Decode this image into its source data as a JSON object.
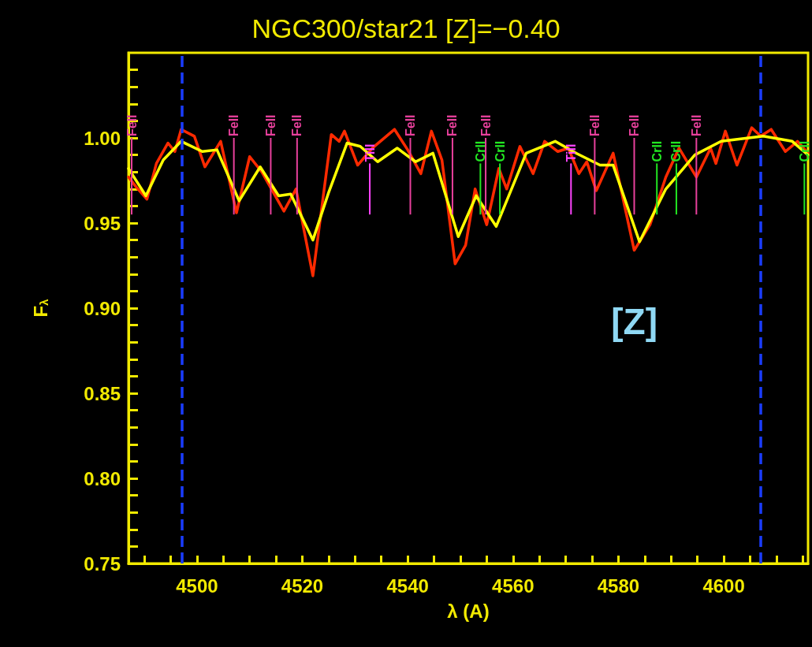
{
  "chart_data": {
    "type": "line",
    "title": "NGC300/star21 [Z]=−0.40",
    "xlabel": "λ (A)",
    "ylabel": "F$_{λ}$",
    "annotations": [
      "[Z]"
    ],
    "xlim": [
      4487,
      4616
    ],
    "ylim": [
      0.75,
      1.05
    ],
    "xticks": [
      {
        "value": 4490,
        "label": null
      },
      {
        "value": 4495,
        "label": null
      },
      4500,
      {
        "value": 4505,
        "label": null
      },
      {
        "value": 4510,
        "label": null
      },
      {
        "value": 4515,
        "label": null
      },
      4520,
      {
        "value": 4525,
        "label": null
      },
      {
        "value": 4530,
        "label": null
      },
      {
        "value": 4535,
        "label": null
      },
      4540,
      {
        "value": 4545,
        "label": null
      },
      {
        "value": 4550,
        "label": null
      },
      {
        "value": 4555,
        "label": null
      },
      4560,
      {
        "value": 4565,
        "label": null
      },
      {
        "value": 4570,
        "label": null
      },
      {
        "value": 4575,
        "label": null
      },
      4580,
      {
        "value": 4585,
        "label": null
      },
      {
        "value": 4590,
        "label": null
      },
      {
        "value": 4595,
        "label": null
      },
      4600,
      {
        "value": 4605,
        "label": null
      },
      {
        "value": 4610,
        "label": null
      },
      {
        "value": 4615,
        "label": null
      }
    ],
    "yticks": [
      {
        "value": 0.75,
        "label": "0.75"
      },
      {
        "value": 0.76,
        "label": null
      },
      {
        "value": 0.77,
        "label": null
      },
      {
        "value": 0.78,
        "label": null
      },
      {
        "value": 0.79,
        "label": null
      },
      {
        "value": 0.8,
        "label": "0.80"
      },
      {
        "value": 0.81,
        "label": null
      },
      {
        "value": 0.82,
        "label": null
      },
      {
        "value": 0.83,
        "label": null
      },
      {
        "value": 0.84,
        "label": null
      },
      {
        "value": 0.85,
        "label": "0.85"
      },
      {
        "value": 0.86,
        "label": null
      },
      {
        "value": 0.87,
        "label": null
      },
      {
        "value": 0.88,
        "label": null
      },
      {
        "value": 0.89,
        "label": null
      },
      {
        "value": 0.9,
        "label": "0.90"
      },
      {
        "value": 0.91,
        "label": null
      },
      {
        "value": 0.92,
        "label": null
      },
      {
        "value": 0.93,
        "label": null
      },
      {
        "value": 0.94,
        "label": null
      },
      {
        "value": 0.95,
        "label": "0.95"
      },
      {
        "value": 0.96,
        "label": null
      },
      {
        "value": 0.97,
        "label": null
      },
      {
        "value": 0.98,
        "label": null
      },
      {
        "value": 0.99,
        "label": null
      },
      {
        "value": 1.0,
        "label": "1.00"
      },
      {
        "value": 1.01,
        "label": null
      },
      {
        "value": 1.02,
        "label": null
      },
      {
        "value": 1.03,
        "label": null
      },
      {
        "value": 1.04,
        "label": null
      }
    ],
    "marker": "none",
    "line_style": "solid",
    "ref_lines": [
      {
        "axis": "x",
        "value": 4497.1,
        "color": "#1a3cff",
        "line_style": "dashed"
      },
      {
        "axis": "x",
        "value": 4607,
        "color": "#1a3cff",
        "line_style": "dashed"
      }
    ],
    "series": [
      {
        "color": "#ff2a00",
        "x": [
          4487.0,
          4488.5,
          4490.5,
          4492.3,
          4494.5,
          4495.8,
          4497.0,
          4499.5,
          4501.5,
          4504.5,
          4507.5,
          4510.0,
          4512.3,
          4516.5,
          4518.8,
          4522.0,
          4525.5,
          4527.0,
          4528.0,
          4530.5,
          4533.3,
          4537.5,
          4540.0,
          4542.5,
          4544.5,
          4546.5,
          4549.0,
          4551.0,
          4552.8,
          4555.0,
          4557.3,
          4558.8,
          4561.3,
          4563.8,
          4566.0,
          4568.5,
          4570.5,
          4572.5,
          4574.0,
          4575.8,
          4579.0,
          4583.0,
          4586.0,
          4589.0,
          4591.5,
          4594.8,
          4597.5,
          4598.5,
          4600.3,
          4602.5,
          4605.3,
          4607.0,
          4609.0,
          4611.7,
          4614.0,
          4616.0
        ],
        "values": [
          0.977,
          0.971,
          0.964,
          0.985,
          0.997,
          0.992,
          1.005,
          1.001,
          0.983,
          0.998,
          0.956,
          0.989,
          0.98,
          0.957,
          0.97,
          0.919,
          1.002,
          0.998,
          1.004,
          0.984,
          0.994,
          1.005,
          0.993,
          0.979,
          1.004,
          0.987,
          0.926,
          0.937,
          0.97,
          0.949,
          0.982,
          0.97,
          0.995,
          0.979,
          0.998,
          0.992,
          0.994,
          0.979,
          0.986,
          0.969,
          0.991,
          0.934,
          0.949,
          0.977,
          0.994,
          0.977,
          0.994,
          0.985,
          1.004,
          0.984,
          1.006,
          1.001,
          1.005,
          0.992,
          0.998,
          0.991
        ]
      },
      {
        "color": "#ffff00",
        "x": [
          4487.0,
          4490.3,
          4493.6,
          4497.0,
          4501.0,
          4503.8,
          4508.0,
          4512.0,
          4515.5,
          4517.8,
          4522.0,
          4525.0,
          4528.5,
          4531.0,
          4534.3,
          4538.0,
          4541.5,
          4544.8,
          4549.6,
          4553.0,
          4556.8,
          4562.5,
          4568.0,
          4572.0,
          4576.5,
          4579.0,
          4584.0,
          4589.0,
          4594.5,
          4599.5,
          4607.5,
          4613.0,
          4616.0
        ],
        "values": [
          0.982,
          0.966,
          0.987,
          0.998,
          0.992,
          0.993,
          0.963,
          0.983,
          0.966,
          0.967,
          0.94,
          0.968,
          0.997,
          0.995,
          0.986,
          0.994,
          0.986,
          0.991,
          0.942,
          0.966,
          0.948,
          0.991,
          0.998,
          0.991,
          0.984,
          0.984,
          0.939,
          0.97,
          0.99,
          0.998,
          1.001,
          0.998,
          0.99
        ]
      },
      {
        "type": "bar",
        "color": "#e8409c",
        "x": [
          4487.6,
          4507.0,
          4514.0,
          4519.0,
          4540.5,
          4548.5,
          4554.8,
          4575.5,
          4583.0,
          4594.8
        ],
        "base": [
          0.955,
          0.955,
          0.955,
          0.955,
          0.955,
          0.955,
          0.955,
          0.955,
          0.955,
          0.955
        ],
        "values": [
          0.045,
          0.045,
          0.045,
          0.045,
          0.045,
          0.045,
          0.045,
          0.045,
          0.045,
          0.045
        ],
        "value_labels": [
          "FeII",
          "FeII",
          "FeII",
          "FeII",
          "FeII",
          "FeII",
          "FeII",
          "FeII",
          "FeII",
          "FeII"
        ]
      },
      {
        "type": "bar",
        "color": "#ff44ff",
        "x": [
          4532.8,
          4571.0
        ],
        "base": [
          0.955,
          0.955
        ],
        "values": [
          0.03,
          0.03
        ],
        "value_labels": [
          "TiII",
          "TiII"
        ]
      },
      {
        "type": "bar",
        "color": "#22e622",
        "x": [
          4553.8,
          4557.5,
          4587.3,
          4591.0,
          4615.3
        ],
        "base": [
          0.955,
          0.955,
          0.955,
          0.955,
          0.955
        ],
        "values": [
          0.03,
          0.03,
          0.03,
          0.03,
          0.03
        ],
        "value_labels": [
          "CrII",
          "CrII",
          "CrII",
          "CrII",
          "CrII"
        ]
      }
    ]
  }
}
